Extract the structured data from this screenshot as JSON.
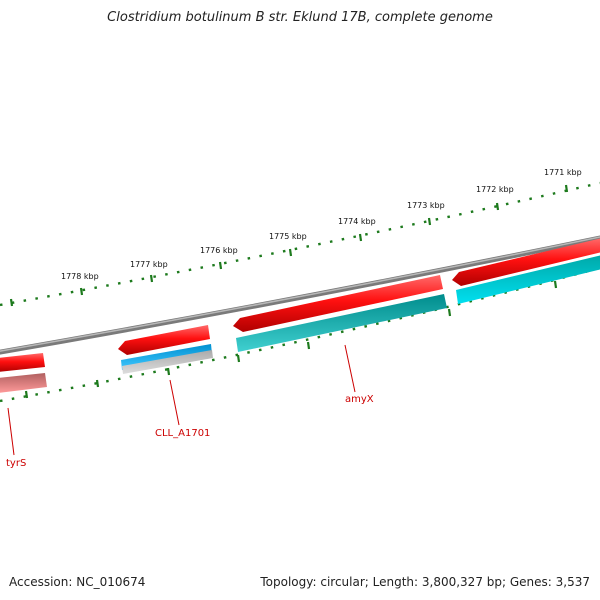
{
  "header": {
    "title": "Clostridium botulinum B str. Eklund 17B, complete genome"
  },
  "footer": {
    "accession": "Accession: NC_010674",
    "summary": "Topology: circular; Length: 3,800,327 bp; Genes: 3,537"
  },
  "ruler": {
    "labels": [
      "1771 kbp",
      "1772 kbp",
      "1773 kbp",
      "1774 kbp",
      "1775 kbp",
      "1776 kbp",
      "1777 kbp",
      "1778 kbp"
    ]
  },
  "genes": [
    {
      "name": "tyrS"
    },
    {
      "name": "CLL_A1701"
    },
    {
      "name": "amyX"
    }
  ],
  "colors": {
    "forward": "#ff1a1a",
    "cds": "#00d8e8",
    "cds_dark": "#00a6a6",
    "blue": "#19b4f0",
    "backbone": "#888888",
    "ticks": "#1d7a1d",
    "label": "#cc0000"
  }
}
